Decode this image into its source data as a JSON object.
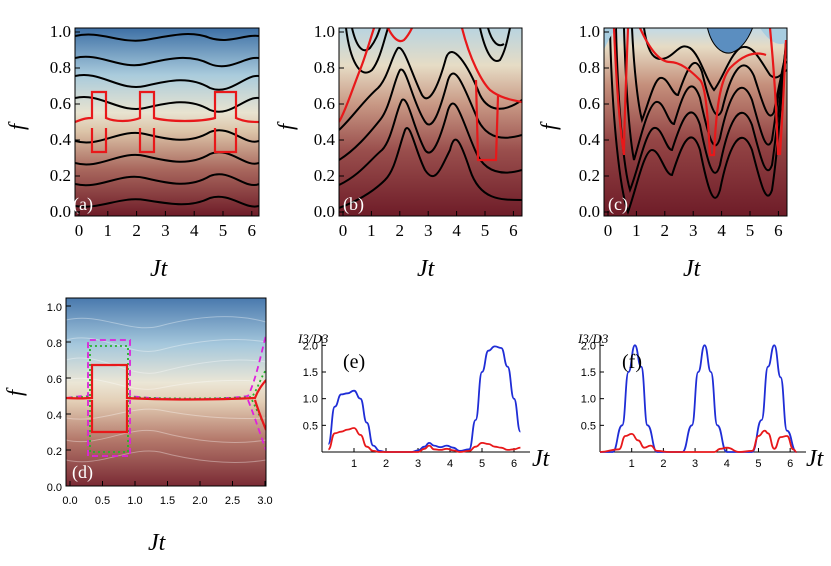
{
  "colors": {
    "red": "#e8181a",
    "blue": "#1f2dd6",
    "magenta": "#dd22dd",
    "green": "#27b22b",
    "contour": "#000000"
  },
  "panels": {
    "a": {
      "label": "(a)",
      "xlabel": "Jt",
      "ylabel": "f",
      "xticks": [
        "0",
        "1",
        "2",
        "3",
        "4",
        "5",
        "6"
      ],
      "yticks": [
        "0.0",
        "0.2",
        "0.4",
        "0.6",
        "0.8",
        "1.0"
      ],
      "xlim": [
        0,
        6.2832
      ],
      "ylim": [
        0,
        1
      ]
    },
    "b": {
      "label": "(b)",
      "xlabel": "Jt",
      "ylabel": "f",
      "xticks": [
        "0",
        "1",
        "2",
        "3",
        "4",
        "5",
        "6"
      ],
      "yticks": [
        "0.0",
        "0.2",
        "0.4",
        "0.6",
        "0.8",
        "1.0"
      ],
      "xlim": [
        0,
        6.2832
      ],
      "ylim": [
        0,
        1
      ]
    },
    "c": {
      "label": "(c)",
      "xlabel": "Jt",
      "ylabel": "f",
      "xticks": [
        "0",
        "1",
        "2",
        "3",
        "4",
        "5",
        "6"
      ],
      "yticks": [
        "0.0",
        "0.2",
        "0.4",
        "0.6",
        "0.8",
        "1.0"
      ],
      "xlim": [
        0,
        6.2832
      ],
      "ylim": [
        0,
        1
      ]
    },
    "d": {
      "label": "(d)",
      "xlabel": "Jt",
      "ylabel": "f",
      "xticks": [
        "0.0",
        "0.5",
        "1.0",
        "1.5",
        "2.0",
        "2.5",
        "3.0"
      ],
      "yticks": [
        "0.0",
        "0.2",
        "0.4",
        "0.6",
        "0.8",
        "1.0"
      ],
      "xlim": [
        0,
        3.1416
      ],
      "ylim": [
        0,
        1
      ]
    },
    "e": {
      "label": "(e)",
      "xlabel": "Jt",
      "ylabel": "I3/D3",
      "xticks": [
        "1",
        "2",
        "3",
        "4",
        "5",
        "6"
      ],
      "yticks": [
        "0.5",
        "1.0",
        "1.5",
        "2.0"
      ]
    },
    "f": {
      "label": "(f)",
      "xlabel": "Jt",
      "ylabel": "I3/D3",
      "xticks": [
        "1",
        "2",
        "3",
        "4",
        "5",
        "6"
      ],
      "yticks": [
        "0.5",
        "1.0",
        "1.5",
        "2.0"
      ]
    }
  },
  "chart_data": [
    {
      "type": "line",
      "panel": "e",
      "title": "(e)",
      "xlabel": "Jt",
      "ylabel": "I3/D3",
      "xlim": [
        0,
        6.5
      ],
      "ylim": [
        0,
        2.1
      ],
      "series": [
        {
          "name": "blue",
          "color": "#1f2dd6",
          "x": [
            0.2,
            0.4,
            0.6,
            0.8,
            1.0,
            1.2,
            1.4,
            1.6,
            1.8,
            2.0,
            2.4,
            2.8,
            3.0,
            3.2,
            3.35,
            3.5,
            3.7,
            3.9,
            4.1,
            4.3,
            4.6,
            4.8,
            5.0,
            5.2,
            5.4,
            5.6,
            5.8,
            6.0,
            6.2
          ],
          "y": [
            0.15,
            0.85,
            1.08,
            1.1,
            1.15,
            1.0,
            0.55,
            0.12,
            0.02,
            0.0,
            0.0,
            0.0,
            0.03,
            0.1,
            0.17,
            0.12,
            0.09,
            0.12,
            0.08,
            0.02,
            0.05,
            0.6,
            1.5,
            1.9,
            1.98,
            1.95,
            1.6,
            1.0,
            0.38
          ]
        },
        {
          "name": "red",
          "color": "#e8181a",
          "x": [
            0.2,
            0.4,
            0.6,
            0.8,
            1.0,
            1.2,
            1.4,
            1.6,
            1.8,
            2.0,
            2.4,
            2.8,
            3.0,
            3.2,
            3.35,
            3.5,
            3.7,
            3.9,
            4.1,
            4.3,
            4.6,
            4.8,
            5.0,
            5.2,
            5.4,
            5.6,
            5.8,
            6.0,
            6.2
          ],
          "y": [
            0.05,
            0.35,
            0.38,
            0.42,
            0.45,
            0.32,
            0.1,
            0.02,
            0.0,
            0.0,
            0.0,
            0.0,
            0.0,
            0.06,
            0.12,
            0.05,
            0.04,
            0.06,
            0.03,
            0.0,
            0.02,
            0.1,
            0.17,
            0.15,
            0.1,
            0.08,
            0.04,
            0.05,
            0.08
          ]
        }
      ]
    },
    {
      "type": "line",
      "panel": "f",
      "title": "(f)",
      "xlabel": "Jt",
      "ylabel": "I3/D3",
      "xlim": [
        0,
        6.5
      ],
      "ylim": [
        0,
        2.1
      ],
      "series": [
        {
          "name": "blue",
          "color": "#1f2dd6",
          "x": [
            0.0,
            0.4,
            0.7,
            0.9,
            1.1,
            1.3,
            1.5,
            1.8,
            2.2,
            2.6,
            2.9,
            3.1,
            3.3,
            3.5,
            3.7,
            4.0,
            4.4,
            4.8,
            5.1,
            5.3,
            5.5,
            5.7,
            5.9,
            6.2
          ],
          "y": [
            0.0,
            0.0,
            0.5,
            1.5,
            2.0,
            1.6,
            0.5,
            0.0,
            0.0,
            0.0,
            0.5,
            1.5,
            2.0,
            1.5,
            0.5,
            0.0,
            0.0,
            0.0,
            0.6,
            1.6,
            2.0,
            1.4,
            0.4,
            0.0
          ]
        },
        {
          "name": "red",
          "color": "#e8181a",
          "x": [
            0.0,
            0.6,
            0.8,
            1.0,
            1.2,
            1.4,
            1.6,
            1.8,
            2.2,
            2.8,
            3.2,
            3.6,
            3.8,
            4.0,
            4.4,
            4.8,
            5.0,
            5.2,
            5.3,
            5.5,
            5.7,
            5.9,
            6.1,
            6.2
          ],
          "y": [
            0.0,
            0.05,
            0.3,
            0.34,
            0.22,
            0.08,
            0.12,
            0.02,
            0.0,
            0.0,
            0.0,
            0.0,
            0.06,
            0.08,
            0.0,
            0.02,
            0.3,
            0.4,
            0.35,
            0.06,
            0.28,
            0.3,
            0.05,
            0.0
          ]
        }
      ]
    }
  ]
}
